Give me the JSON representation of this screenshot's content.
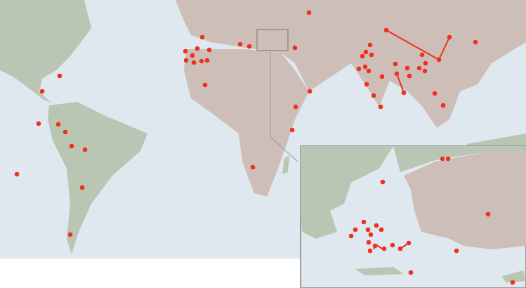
{
  "map": {
    "ocean_color": "#dfe7ef",
    "land_color": "#cdbfb8",
    "lowland_color": "#b9c6b4",
    "marker_color": "#f0301e",
    "inset_border_color": "#9a9a9a"
  }
}
